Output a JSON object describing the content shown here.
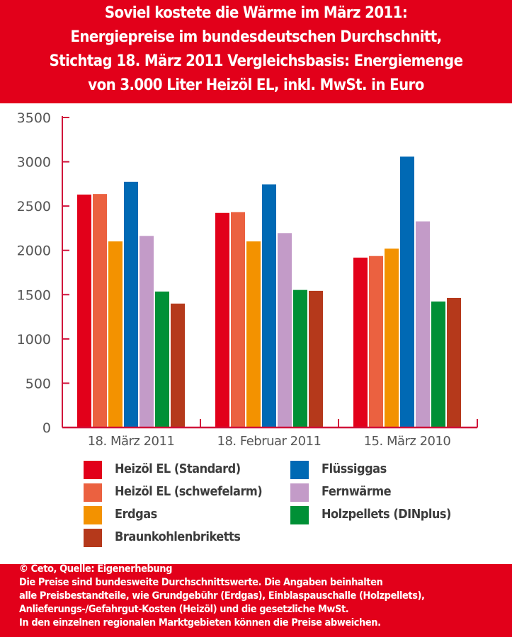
{
  "title_lines": [
    "Soviel kostete die Wärme im März 2011:",
    "Energiepreise im bundesdeutschen Durchschnitt,",
    "Stichtag 18. März 2011 Vergleichsbasis: Energiemenge",
    "von 3.000 Liter Heizöl EL, inkl. MwSt. in Euro"
  ],
  "chart_data": {
    "type": "bar",
    "title": "Soviel kostete die Wärme im März 2011: Energiepreise im bundesdeutschen Durchschnitt, Stichtag 18. März 2011 Vergleichsbasis: Energiemenge von 3.000 Liter Heizöl EL, inkl. MwSt. in Euro",
    "categories": [
      "18. März 2011",
      "18. Februar 2011",
      "15. März 2010"
    ],
    "ylim": [
      0,
      3500
    ],
    "yticks": [
      "0",
      "500",
      "1000",
      "1500",
      "2000",
      "2500",
      "3000",
      "3500"
    ],
    "grid": false,
    "legend_placement": "bottom",
    "series": [
      {
        "name": "Heizöl EL (Standard)",
        "color": "#e2001a",
        "values": [
          2630,
          2423,
          1918
        ]
      },
      {
        "name": "Heizöl EL (schwefelarm)",
        "color": "#eb6140",
        "values": [
          2636,
          2431,
          1936
        ]
      },
      {
        "name": "Erdgas",
        "color": "#f39200",
        "values": [
          2101,
          2101,
          2019
        ]
      },
      {
        "name": "Flüssiggas",
        "color": "#0069b4",
        "values": [
          2774,
          2745,
          3058
        ]
      },
      {
        "name": "Fernwärme",
        "color": "#c39bc8",
        "values": [
          2163,
          2195,
          2327
        ]
      },
      {
        "name": "Holzpellets (DINplus)",
        "color": "#009036",
        "values": [
          1535,
          1553,
          1422
        ]
      },
      {
        "name": "Braunkohlenbriketts",
        "color": "#b5391b",
        "values": [
          1399,
          1543,
          1463
        ]
      }
    ]
  },
  "footer_lines": [
    "© Ceto, Quelle: Eigenerhebung",
    "Die Preise sind bundesweite Durchschnittswerte. Die Angaben beinhalten",
    "alle Preisbestandteile, wie Grundgebühr (Erdgas), Einblaspauschalle (Holzpellets),",
    "Anlieferungs-/Gefahrgut-Kosten (Heizöl) und die gesetzliche MwSt.",
    "In den einzelnen regionalen Marktgebieten können die Preise abweichen."
  ]
}
